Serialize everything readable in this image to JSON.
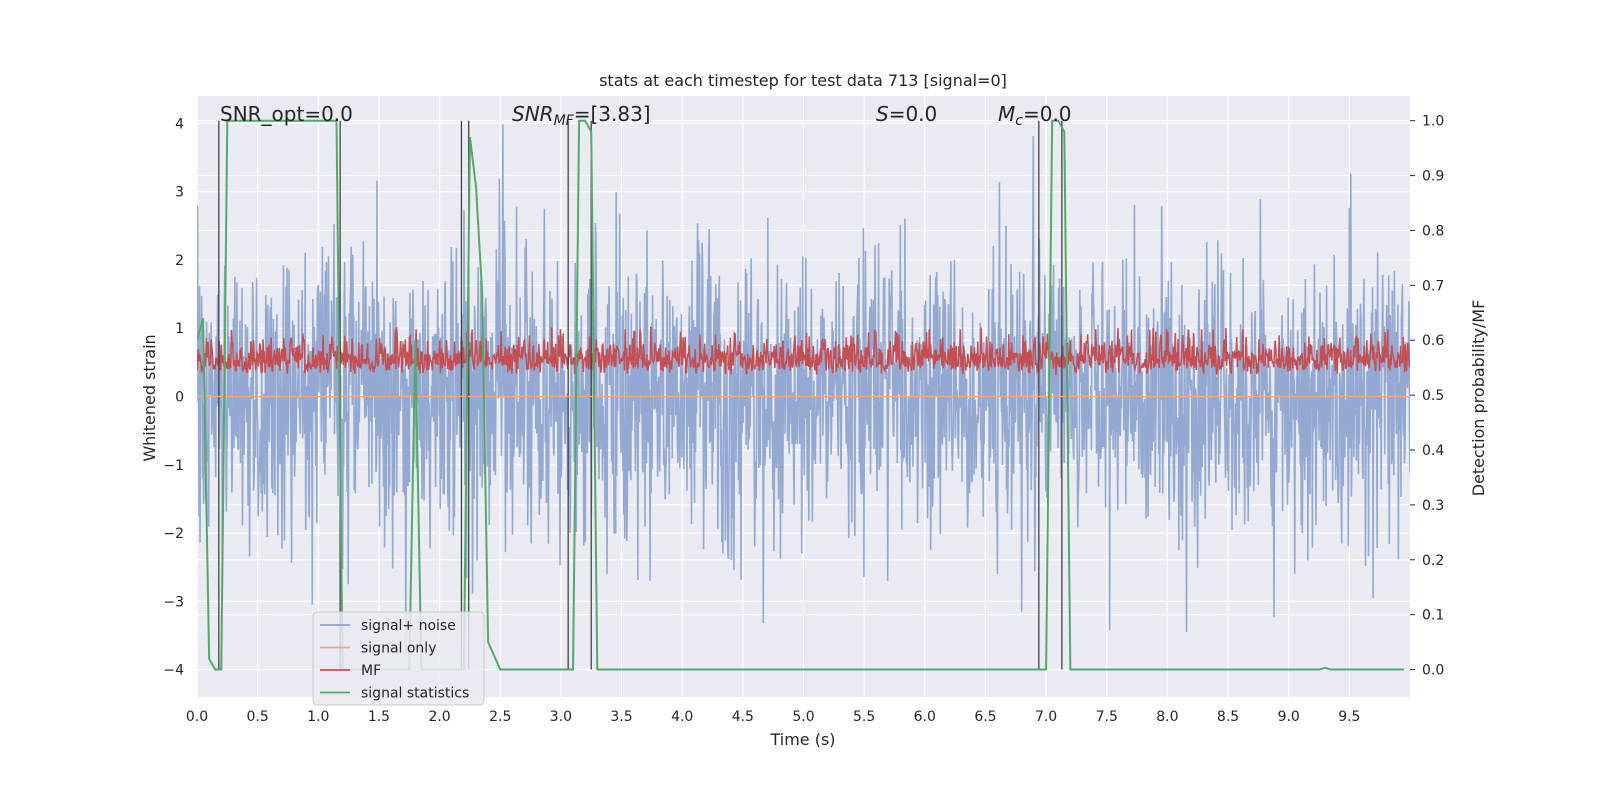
{
  "chart_data": {
    "type": "line",
    "title": "stats at each timestep for test data 713 [signal=0]",
    "xlabel": "Time (s)",
    "ylabel_left": "Whitened strain",
    "ylabel_right": "Detection probability/MF",
    "xlim": [
      0.0,
      10.0
    ],
    "ylim_left": [
      -4.4,
      4.4
    ],
    "ylim_right": [
      -0.05,
      1.045
    ],
    "xticks": [
      "0.0",
      "0.5",
      "1.0",
      "1.5",
      "2.0",
      "2.5",
      "3.0",
      "3.5",
      "4.0",
      "4.5",
      "5.0",
      "5.5",
      "6.0",
      "6.5",
      "7.0",
      "7.5",
      "8.0",
      "8.5",
      "9.0",
      "9.5"
    ],
    "yticks_left": [
      "4",
      "3",
      "2",
      "1",
      "0",
      "−1",
      "−2",
      "−3",
      "−4"
    ],
    "yticks_right": [
      "1.0",
      "0.9",
      "0.8",
      "0.7",
      "0.6",
      "0.5",
      "0.4",
      "0.3",
      "0.2",
      "0.1",
      "0.0"
    ],
    "grid": true,
    "legend_placement": "lower-left",
    "annotations": {
      "snr_opt": "SNR_opt=0.0",
      "snr_mf_label": "SNR",
      "snr_mf_sub": "MF",
      "snr_mf_value": "=[3.83]",
      "s_label": "S",
      "s_value": "=0.0",
      "mc_label": "M",
      "mc_sub": "c",
      "mc_value": "=0.0"
    },
    "series": [
      {
        "name": "signal+ noise",
        "color": "#8fa5cf",
        "axis": "left",
        "description_values": "dense white noise, std approx 1.0, range approx -4.0 to 4.0"
      },
      {
        "name": "signal only",
        "color": "#f0a88a",
        "axis": "left",
        "values_constant": 0.0
      },
      {
        "name": "MF",
        "color": "#c44e52",
        "axis": "right",
        "description_values": "dense noisy band, range approx 0.5 to 0.62"
      },
      {
        "name": "signal statistics",
        "color": "#55a868",
        "axis": "right",
        "x": [
          0.0,
          0.05,
          0.1,
          0.15,
          0.2,
          0.25,
          1.15,
          1.2,
          1.25,
          1.3,
          1.75,
          1.8,
          1.85,
          2.2,
          2.25,
          2.3,
          2.35,
          2.4,
          2.5,
          3.05,
          3.1,
          3.15,
          3.2,
          3.25,
          3.3,
          6.95,
          7.0,
          7.05,
          7.1,
          7.15,
          7.2,
          9.25,
          9.3,
          9.35,
          9.95
        ],
        "values": [
          0.6,
          0.64,
          0.02,
          0.0,
          0.0,
          1.0,
          1.0,
          0.0,
          0.0,
          0.0,
          0.0,
          0.6,
          0.0,
          0.0,
          0.97,
          0.88,
          0.69,
          0.05,
          0.0,
          0.0,
          0.0,
          1.0,
          1.0,
          0.98,
          0.0,
          0.0,
          0.0,
          1.0,
          1.0,
          0.98,
          0.0,
          0.0,
          0.003,
          0.0,
          0.0
        ]
      }
    ],
    "vertical_lines_x": [
      0.18,
      1.18,
      2.18,
      2.24,
      3.06,
      3.25,
      6.94,
      7.13
    ]
  }
}
